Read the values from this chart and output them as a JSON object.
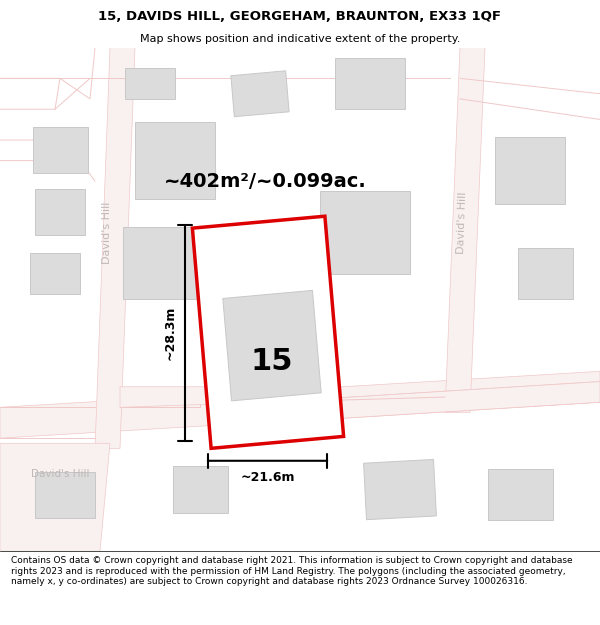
{
  "title_line1": "15, DAVIDS HILL, GEORGEHAM, BRAUNTON, EX33 1QF",
  "title_line2": "Map shows position and indicative extent of the property.",
  "area_label": "~402m²/~0.099ac.",
  "width_label": "~21.6m",
  "height_label": "~28.3m",
  "plot_number": "15",
  "footer": "Contains OS data © Crown copyright and database right 2021. This information is subject to Crown copyright and database rights 2023 and is reproduced with the permission of HM Land Registry. The polygons (including the associated geometry, namely x, y co-ordinates) are subject to Crown copyright and database rights 2023 Ordnance Survey 100026316.",
  "map_bg": "#f7f6f4",
  "road_outline": "#f0c8c8",
  "road_fill": "#f9f0f0",
  "building_fill": "#dcdcdc",
  "building_edge": "#c8c8c8",
  "plot_edge": "#dd0000",
  "plot_fill": "#ffffff",
  "road_label_color": "#c0b8b8",
  "title_fontsize": 9.5,
  "subtitle_fontsize": 8,
  "area_fontsize": 14,
  "dim_fontsize": 9,
  "plot_label_fontsize": 22,
  "footer_fontsize": 6.5
}
